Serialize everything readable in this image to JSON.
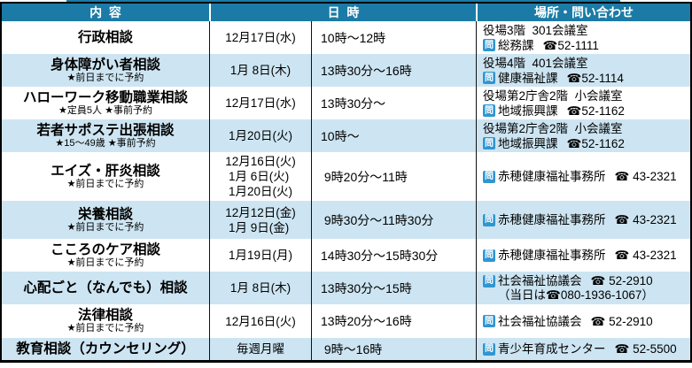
{
  "accent_colors": {
    "header_teal": "#1b7ba6",
    "row_light_blue": "#cde5f2",
    "inquiry_badge_blue": "#2f96d2",
    "border_black": "#000000"
  },
  "icons": {
    "inquiry_icon": "問"
  },
  "header": {
    "content": "内  容",
    "datetime": "日  時",
    "place_contact": "場所・問い合わせ"
  },
  "rows": [
    {
      "title": "行政相談",
      "note": "",
      "date1": "12月17日(水)",
      "date2": "",
      "date3": "",
      "time": "10時～12時",
      "place": "役場3階  301会議室",
      "contact": "総務課",
      "phone": "☎52-1111",
      "extra": ""
    },
    {
      "title": "身体障がい者相談",
      "note": "★前日までに予約",
      "date1": "1月 8日(木)",
      "date2": "",
      "date3": "",
      "time": "13時30分～16時",
      "place": "役場4階  401会議室",
      "contact": "健康福祉課",
      "phone": "☎52-1114",
      "extra": ""
    },
    {
      "title": "ハローワーク移動職業相談",
      "note": "★定員5人 ★事前予約",
      "date1": "12月17日(水)",
      "date2": "",
      "date3": "",
      "time": "13時30分～",
      "place": "役場第2庁舎2階  小会議室",
      "contact": "地域振興課",
      "phone": "☎52-1162",
      "extra": ""
    },
    {
      "title": "若者サポステ出張相談",
      "note": "★15～49歳 ★事前予約",
      "date1": "1月20日(火)",
      "date2": "",
      "date3": "",
      "time": "10時～",
      "place": "役場第2庁舎2階  小会議室",
      "contact": "地域振興課",
      "phone": "☎52-1162",
      "extra": ""
    },
    {
      "title": "エイズ・肝炎相談",
      "note": "★前日までに予約",
      "date1": "12月16日(火)",
      "date2": " 1月 6日(火)",
      "date3": " 1月20日(火)",
      "time": " 9時20分～11時",
      "place": "",
      "contact": "赤穂健康福祉事務所",
      "phone": "☎ 43-2321",
      "extra": ""
    },
    {
      "title": "栄養相談",
      "note": "★前日までに予約",
      "date1": "12月12日(金)",
      "date2": " 1月 9日(金)",
      "date3": "",
      "time": " 9時30分～11時30分",
      "place": "",
      "contact": "赤穂健康福祉事務所",
      "phone": "☎ 43-2321",
      "extra": ""
    },
    {
      "title": "こころのケア相談",
      "note": "★前日までに予約",
      "date1": "1月19日(月)",
      "date2": "",
      "date3": "",
      "time": "14時30分～15時30分",
      "place": "",
      "contact": "赤穂健康福祉事務所",
      "phone": "☎ 43-2321",
      "extra": ""
    },
    {
      "title": "心配ごと（なんでも）相談",
      "note": "",
      "date1": "1月 8日(木)",
      "date2": "",
      "date3": "",
      "time": "13時30分～15時",
      "place": "",
      "contact": "社会福祉協議会",
      "phone": "☎ 52-2910",
      "extra": "（当日は☎080-1936-1067）"
    },
    {
      "title": "法律相談",
      "note": "★前日までに予約",
      "date1": "12月16日(火)",
      "date2": "",
      "date3": "",
      "time": "13時20分～16時",
      "place": "",
      "contact": "社会福祉協議会",
      "phone": "☎ 52-2910",
      "extra": ""
    },
    {
      "title": "教育相談（カウンセリング）",
      "note": "",
      "date1": "毎週月曜",
      "date2": "",
      "date3": "",
      "time": " 9時～16時",
      "place": "",
      "contact": "青少年育成センター",
      "phone": "☎ 52-5500",
      "extra": ""
    }
  ]
}
